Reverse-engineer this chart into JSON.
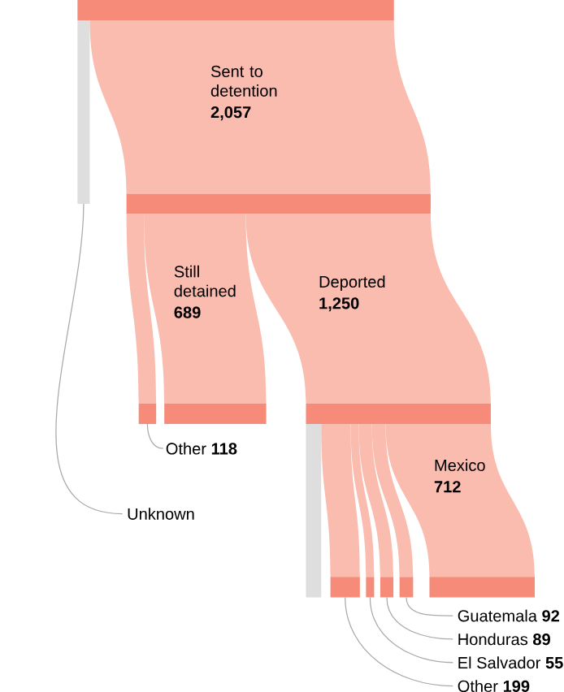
{
  "chart_data": {
    "type": "other",
    "categories": [
      "Sent to detention",
      "Still detained",
      "Deported",
      "Other",
      "Unknown",
      "Mexico",
      "Guatemala",
      "Honduras",
      "El Salvador",
      "Other"
    ],
    "values": [
      2057,
      689,
      1250,
      118,
      null,
      712,
      92,
      89,
      55,
      199
    ],
    "value_labels": [
      "2,057",
      "689",
      "1,250",
      "118",
      null,
      "712",
      "92",
      "89",
      "55",
      "199"
    ]
  }
}
